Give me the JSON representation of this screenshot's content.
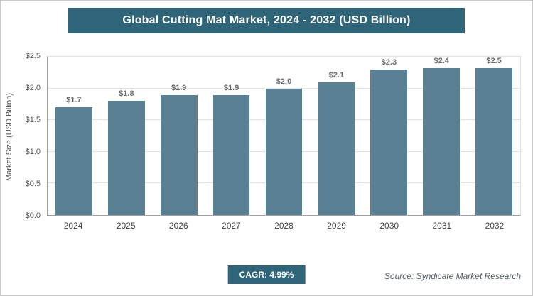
{
  "title": "Global Cutting Mat Market, 2024 - 2032 (USD Billion)",
  "colors": {
    "accent": "#2f6579",
    "bar": "#5a8093",
    "grid": "#e3e3e3"
  },
  "footer": {
    "cagr_label": "CAGR: 4.99%",
    "source": "Source: Syndicate Market Research"
  },
  "chart_data": {
    "type": "bar",
    "title": "Global Cutting Mat Market, 2024 - 2032 (USD Billion)",
    "categories": [
      "2024",
      "2025",
      "2026",
      "2027",
      "2028",
      "2029",
      "2030",
      "2031",
      "2032"
    ],
    "values": [
      1.7,
      1.8,
      1.9,
      1.9,
      2.0,
      2.1,
      2.3,
      2.4,
      2.5
    ],
    "value_labels": [
      "$1.7",
      "$1.8",
      "$1.9",
      "$1.9",
      "$2.0",
      "$2.1",
      "$2.3",
      "$2.4",
      "$2.5"
    ],
    "xlabel": "",
    "ylabel": "Market Size (USD Billion)",
    "ylim": [
      0,
      2.5
    ],
    "yticks": [
      0,
      0.5,
      1.0,
      1.5,
      2.0,
      2.5
    ],
    "ytick_labels": [
      "$0.0",
      "$0.5",
      "$1.0",
      "$1.5",
      "$2.0",
      "$2.5"
    ],
    "grid": true,
    "legend": false
  }
}
